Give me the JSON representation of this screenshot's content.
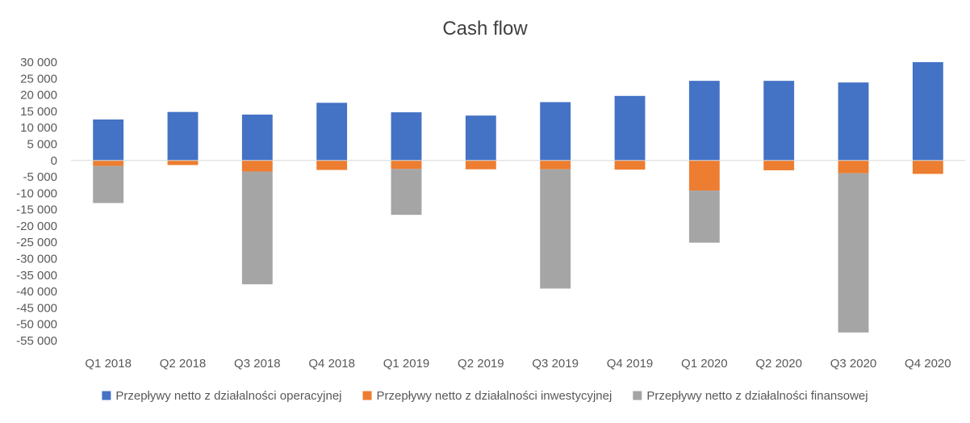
{
  "chart_data": {
    "type": "bar",
    "stacked": true,
    "title": "Cash flow",
    "xlabel": "",
    "ylabel": "",
    "ylim": [
      -55000,
      30000
    ],
    "yticks": [
      30000,
      25000,
      20000,
      15000,
      10000,
      5000,
      0,
      -5000,
      -10000,
      -15000,
      -20000,
      -25000,
      -30000,
      -35000,
      -40000,
      -45000,
      -50000,
      -55000
    ],
    "ytick_labels": [
      "30 000",
      "25 000",
      "20 000",
      "15 000",
      "10 000",
      "5 000",
      "0",
      "-5 000",
      "-10 000",
      "-15 000",
      "-20 000",
      "-25 000",
      "-30 000",
      "-35 000",
      "-40 000",
      "-45 000",
      "-50 000",
      "-55 000"
    ],
    "categories": [
      "Q1 2018",
      "Q2 2018",
      "Q3 2018",
      "Q4 2018",
      "Q1 2019",
      "Q2 2019",
      "Q3 2019",
      "Q4 2019",
      "Q1 2020",
      "Q2 2020",
      "Q3 2020",
      "Q4 2020"
    ],
    "legend_position": "bottom",
    "grid": false,
    "series": [
      {
        "name": "Przepływy netto z działalności operacyjnej",
        "color": "#4472C4",
        "values": [
          12500,
          14800,
          14000,
          17600,
          14700,
          13700,
          17800,
          19700,
          24300,
          24300,
          23800,
          30000
        ]
      },
      {
        "name": "Przepływy netto z działalności inwestycyjnej",
        "color": "#ED7D31",
        "values": [
          -1700,
          -1400,
          -3400,
          -2900,
          -2600,
          -2700,
          -2700,
          -2800,
          -9200,
          -3000,
          -3900,
          -4100
        ]
      },
      {
        "name": "Przepływy netto z działalności finansowej",
        "color": "#A5A5A5",
        "values": [
          -11300,
          0,
          -34400,
          0,
          -14000,
          0,
          -36400,
          0,
          -15900,
          0,
          -48600,
          0
        ]
      }
    ]
  }
}
